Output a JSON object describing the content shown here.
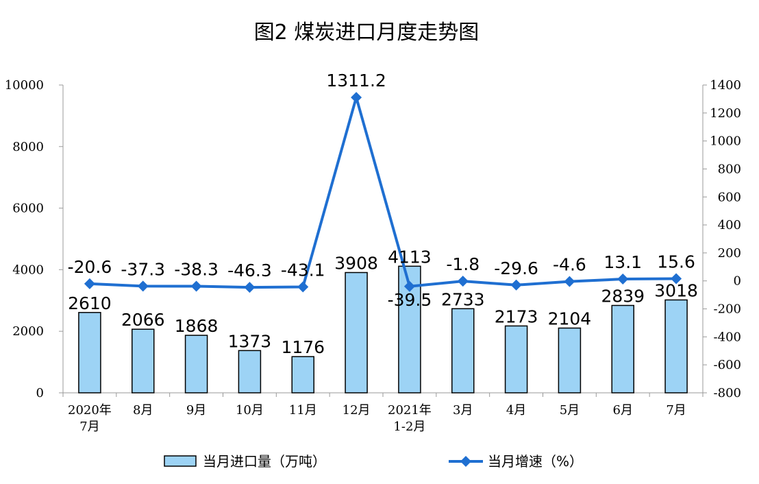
{
  "chart_data": {
    "type": "bar",
    "title": "图2  煤炭进口月度走势图",
    "categories": [
      [
        "2020年",
        "7月"
      ],
      [
        "8月"
      ],
      [
        "9月"
      ],
      [
        "10月"
      ],
      [
        "11月"
      ],
      [
        "12月"
      ],
      [
        "2021年",
        "1-2月"
      ],
      [
        "3月"
      ],
      [
        "4月"
      ],
      [
        "5月"
      ],
      [
        "6月"
      ],
      [
        "7月"
      ]
    ],
    "series": [
      {
        "name": "当月进口量（万吨）",
        "type": "bar",
        "axis": "left",
        "values": [
          2610,
          2066,
          1868,
          1373,
          1176,
          3908,
          4113,
          2733,
          2173,
          2104,
          2839,
          3018
        ],
        "labels": [
          "2610",
          "2066",
          "1868",
          "1373",
          "1176",
          "3908",
          "4113",
          "2733",
          "2173",
          "2104",
          "2839",
          "3018"
        ],
        "color": "#9dd3f5"
      },
      {
        "name": "当月增速（%）",
        "type": "line",
        "axis": "right",
        "values": [
          -20.6,
          -37.3,
          -38.3,
          -46.3,
          -43.1,
          1311.2,
          -39.5,
          -1.8,
          -29.6,
          -4.6,
          13.1,
          15.6
        ],
        "labels": [
          "-20.6",
          "-37.3",
          "-38.3",
          "-46.3",
          "-43.1",
          "1311.2",
          "-39.5",
          "-1.8",
          "-29.6",
          "-4.6",
          "13.1",
          "15.6"
        ],
        "color": "#1f6fd1"
      }
    ],
    "y_left": {
      "range": [
        0,
        10000
      ],
      "ticks": [
        "0",
        "2000",
        "4000",
        "6000",
        "8000",
        "10000"
      ]
    },
    "y_right": {
      "range": [
        -800,
        1400
      ],
      "ticks": [
        "-800",
        "-600",
        "-400",
        "-200",
        "0",
        "200",
        "400",
        "600",
        "800",
        "1000",
        "1200",
        "1400"
      ]
    },
    "legend": {
      "placement": "bottom"
    },
    "grid": false
  }
}
